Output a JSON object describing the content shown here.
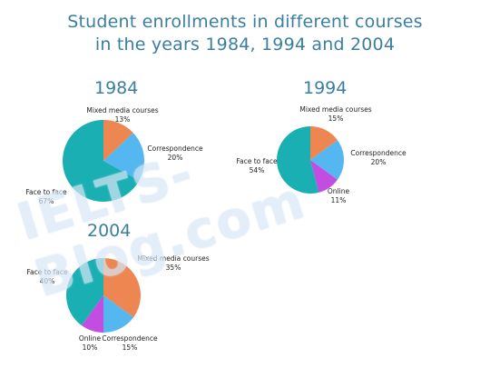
{
  "chart_data": [
    {
      "type": "pie",
      "title": "1984",
      "slices": [
        {
          "name": "Mixed media courses",
          "label": "13%",
          "value": 13,
          "color": "#ed8650"
        },
        {
          "name": "Correspondence",
          "label": "20%",
          "value": 20,
          "color": "#54b7f0"
        },
        {
          "name": "Face to face",
          "label": "67%",
          "value": 67,
          "color": "#1aafb3"
        }
      ]
    },
    {
      "type": "pie",
      "title": "1994",
      "slices": [
        {
          "name": "Mixed media courses",
          "label": "15%",
          "value": 15,
          "color": "#ed8650"
        },
        {
          "name": "Correspondence",
          "label": "20%",
          "value": 20,
          "color": "#54b7f0"
        },
        {
          "name": "Online",
          "label": "11%",
          "value": 11,
          "color": "#c14ee0"
        },
        {
          "name": "Face to face",
          "label": "54%",
          "value": 54,
          "color": "#1aafb3"
        }
      ]
    },
    {
      "type": "pie",
      "title": "2004",
      "slices": [
        {
          "name": "Mixed media courses",
          "label": "35%",
          "value": 35,
          "color": "#ed8650"
        },
        {
          "name": "Correspondence",
          "label": "15%",
          "value": 15,
          "color": "#54b7f0"
        },
        {
          "name": "Online",
          "label": "10%",
          "value": 10,
          "color": "#c14ee0"
        },
        {
          "name": "Face to face",
          "label": "40%",
          "value": 40,
          "color": "#1aafb3"
        }
      ]
    }
  ],
  "page_title_line1": "Student enrollments in different courses",
  "page_title_line2": "in the years 1984, 1994 and 2004",
  "watermark": "IELTS-Blog.com"
}
